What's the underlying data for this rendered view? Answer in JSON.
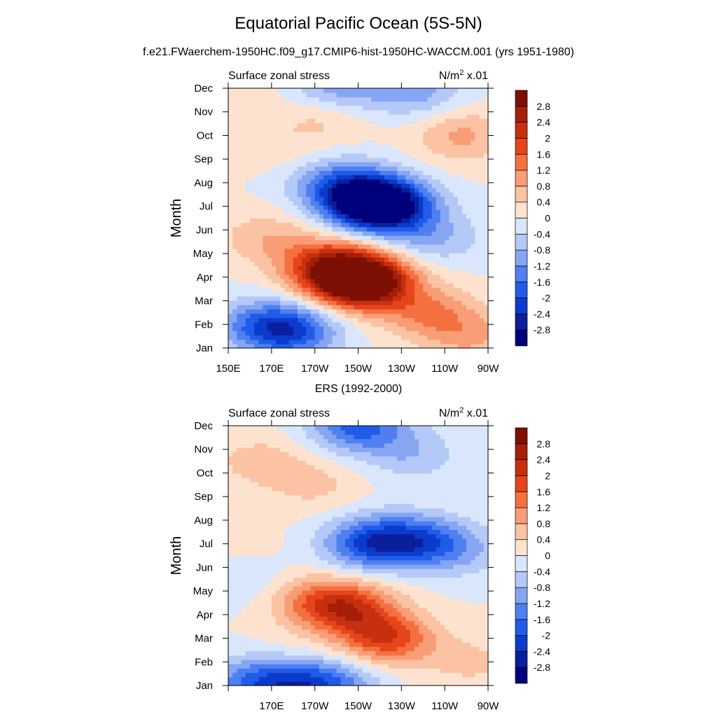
{
  "title": "Equatorial Pacific Ocean (5S-5N)",
  "subtitle": "f.e21.FWaerchem-1950HC.f09_g17.CMIP6-hist-1950HC-WACCM.001 (yrs 1951-1980)",
  "colors": {
    "palette": [
      "#00007a",
      "#0b1f9c",
      "#0b3bcc",
      "#1f5ce8",
      "#4f7ff0",
      "#86a6f4",
      "#b4c9f7",
      "#d9e6fb",
      "#fde3cf",
      "#fbc3a3",
      "#f99d77",
      "#f4713f",
      "#e6451c",
      "#c7300f",
      "#a41f0a",
      "#7e0f05"
    ]
  },
  "chart_data": [
    {
      "type": "heatmap",
      "panel_title": "",
      "left_label": "Surface zonal stress",
      "units": "N/m",
      "units_sup": "2",
      "units_suffix": " x.01",
      "ylabel": "Month",
      "x_ticks": [
        "150E",
        "170E",
        "170W",
        "150W",
        "130W",
        "110W",
        "90W"
      ],
      "x_range_deg_east": [
        150,
        270
      ],
      "y_ticks": [
        "Jan",
        "Feb",
        "Mar",
        "Apr",
        "May",
        "Jun",
        "Jul",
        "Aug",
        "Sep",
        "Oct",
        "Nov",
        "Dec"
      ],
      "color_levels": [
        "-2.8",
        "-2.4",
        "-2",
        "-1.6",
        "-1.2",
        "-0.8",
        "-0.4",
        "0",
        "0.4",
        "0.8",
        "1.2",
        "1.6",
        "2",
        "2.4",
        "2.8"
      ],
      "features": [
        {
          "lon": 150,
          "month": 12,
          "value": 0.3
        },
        {
          "lon": 258,
          "month": 10,
          "value": 0.9
        },
        {
          "lon": 195,
          "month": 11,
          "value": 0.7
        },
        {
          "lon": 166,
          "month": 2,
          "value": -1.3
        },
        {
          "lon": 180,
          "month": 1.7,
          "value": -1.6
        },
        {
          "lon": 222,
          "month": 7,
          "value": -2.8
        },
        {
          "lon": 214,
          "month": 7.3,
          "value": -2.0
        },
        {
          "lon": 200,
          "month": 8,
          "value": -1.2
        },
        {
          "lon": 207,
          "month": 4,
          "value": 2.6
        },
        {
          "lon": 215,
          "month": 3.7,
          "value": 2.1
        },
        {
          "lon": 195,
          "month": 4.6,
          "value": 1.5
        },
        {
          "lon": 168,
          "month": 5.7,
          "value": 0.7
        },
        {
          "lon": 243,
          "month": 2.5,
          "value": 1.1
        },
        {
          "lon": 262,
          "month": 1.5,
          "value": 0.8
        },
        {
          "lon": 175,
          "month": 9.5,
          "value": 0.3
        },
        {
          "lon": 236,
          "month": 11.9,
          "value": -1.0
        },
        {
          "lon": 200,
          "month": 11.9,
          "value": -1.2
        },
        {
          "lon": 245,
          "month": 5.7,
          "value": -0.8
        }
      ]
    },
    {
      "type": "heatmap",
      "panel_title": "ERS (1992-2000)",
      "left_label": "Surface zonal stress",
      "units": "N/m",
      "units_sup": "2",
      "units_suffix": " x.01",
      "ylabel": "Month",
      "x_ticks": [
        "",
        "170E",
        "170W",
        "150W",
        "130W",
        "110W",
        "90W"
      ],
      "x_range_deg_east": [
        150,
        270
      ],
      "y_ticks": [
        "Jan",
        "Feb",
        "Mar",
        "Apr",
        "May",
        "Jun",
        "Jul",
        "Aug",
        "Sep",
        "Oct",
        "Nov",
        "Dec"
      ],
      "color_levels": [
        "-2.8",
        "-2.4",
        "-2",
        "-1.6",
        "-1.2",
        "-0.8",
        "-0.4",
        "0",
        "0.4",
        "0.8",
        "1.2",
        "1.6",
        "2",
        "2.4",
        "2.8"
      ],
      "features": [
        {
          "lon": 210,
          "month": 12,
          "value": -1.8
        },
        {
          "lon": 235,
          "month": 10.8,
          "value": -0.7
        },
        {
          "lon": 165,
          "month": 10.5,
          "value": 0.6
        },
        {
          "lon": 190,
          "month": 9.5,
          "value": 0.5
        },
        {
          "lon": 155,
          "month": 7,
          "value": 0.2
        },
        {
          "lon": 215,
          "month": 7,
          "value": -1.7
        },
        {
          "lon": 245,
          "month": 7,
          "value": -1.4
        },
        {
          "lon": 228,
          "month": 7.3,
          "value": -0.8
        },
        {
          "lon": 205,
          "month": 4.3,
          "value": 1.8
        },
        {
          "lon": 223,
          "month": 3,
          "value": 1.9
        },
        {
          "lon": 190,
          "month": 4.6,
          "value": 0.9
        },
        {
          "lon": 175,
          "month": 2.2,
          "value": 0.2
        },
        {
          "lon": 180,
          "month": 1,
          "value": -1.6
        },
        {
          "lon": 160,
          "month": 1.2,
          "value": -1.2
        },
        {
          "lon": 200,
          "month": 1.1,
          "value": -1.1
        },
        {
          "lon": 262,
          "month": 2,
          "value": 0.5
        },
        {
          "lon": 155,
          "month": 5.5,
          "value": -0.4
        },
        {
          "lon": 267,
          "month": 6.5,
          "value": -0.3
        }
      ]
    }
  ]
}
